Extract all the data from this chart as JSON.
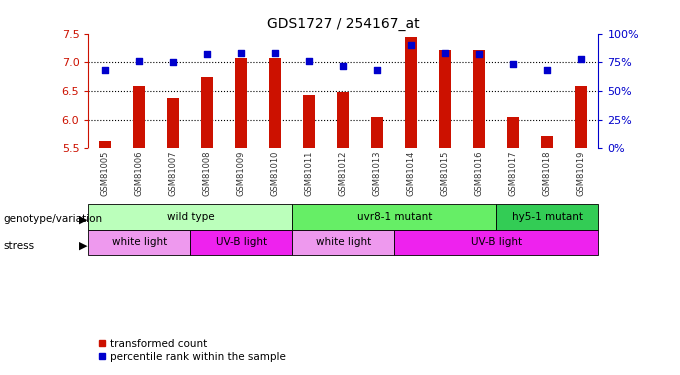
{
  "title": "GDS1727 / 254167_at",
  "samples": [
    "GSM81005",
    "GSM81006",
    "GSM81007",
    "GSM81008",
    "GSM81009",
    "GSM81010",
    "GSM81011",
    "GSM81012",
    "GSM81013",
    "GSM81014",
    "GSM81015",
    "GSM81016",
    "GSM81017",
    "GSM81018",
    "GSM81019"
  ],
  "bar_values": [
    5.62,
    6.58,
    6.38,
    6.75,
    7.08,
    7.08,
    6.43,
    6.49,
    6.05,
    7.45,
    7.22,
    7.22,
    6.05,
    5.72,
    6.58
  ],
  "percentile_values": [
    68,
    76,
    75,
    82,
    83,
    83,
    76,
    72,
    68,
    90,
    83,
    82,
    74,
    68,
    78
  ],
  "ylim_left": [
    5.5,
    7.5
  ],
  "ylim_right": [
    0,
    100
  ],
  "yticks_left": [
    5.5,
    6.0,
    6.5,
    7.0,
    7.5
  ],
  "yticks_right": [
    0,
    25,
    50,
    75,
    100
  ],
  "bar_color": "#CC1100",
  "dot_color": "#0000CC",
  "genotype_groups": [
    {
      "label": "wild type",
      "start": 0,
      "end": 5,
      "color": "#BBFFBB"
    },
    {
      "label": "uvr8-1 mutant",
      "start": 6,
      "end": 11,
      "color": "#66EE66"
    },
    {
      "label": "hy5-1 mutant",
      "start": 12,
      "end": 14,
      "color": "#33CC55"
    }
  ],
  "stress_groups": [
    {
      "label": "white light",
      "start": 0,
      "end": 2,
      "color": "#EE99EE"
    },
    {
      "label": "UV-B light",
      "start": 3,
      "end": 5,
      "color": "#EE22EE"
    },
    {
      "label": "white light",
      "start": 6,
      "end": 8,
      "color": "#EE99EE"
    },
    {
      "label": "UV-B light",
      "start": 9,
      "end": 14,
      "color": "#EE22EE"
    }
  ],
  "legend_red_label": "transformed count",
  "legend_blue_label": "percentile rank within the sample",
  "xlabel_genotype": "genotype/variation",
  "xlabel_stress": "stress",
  "tick_label_color": "#333333",
  "right_axis_color": "#0000CC",
  "left_axis_color": "#CC1100",
  "sample_bg_color": "#CCCCCC",
  "grid_yticks": [
    6.0,
    6.5,
    7.0
  ],
  "bar_width": 0.35
}
